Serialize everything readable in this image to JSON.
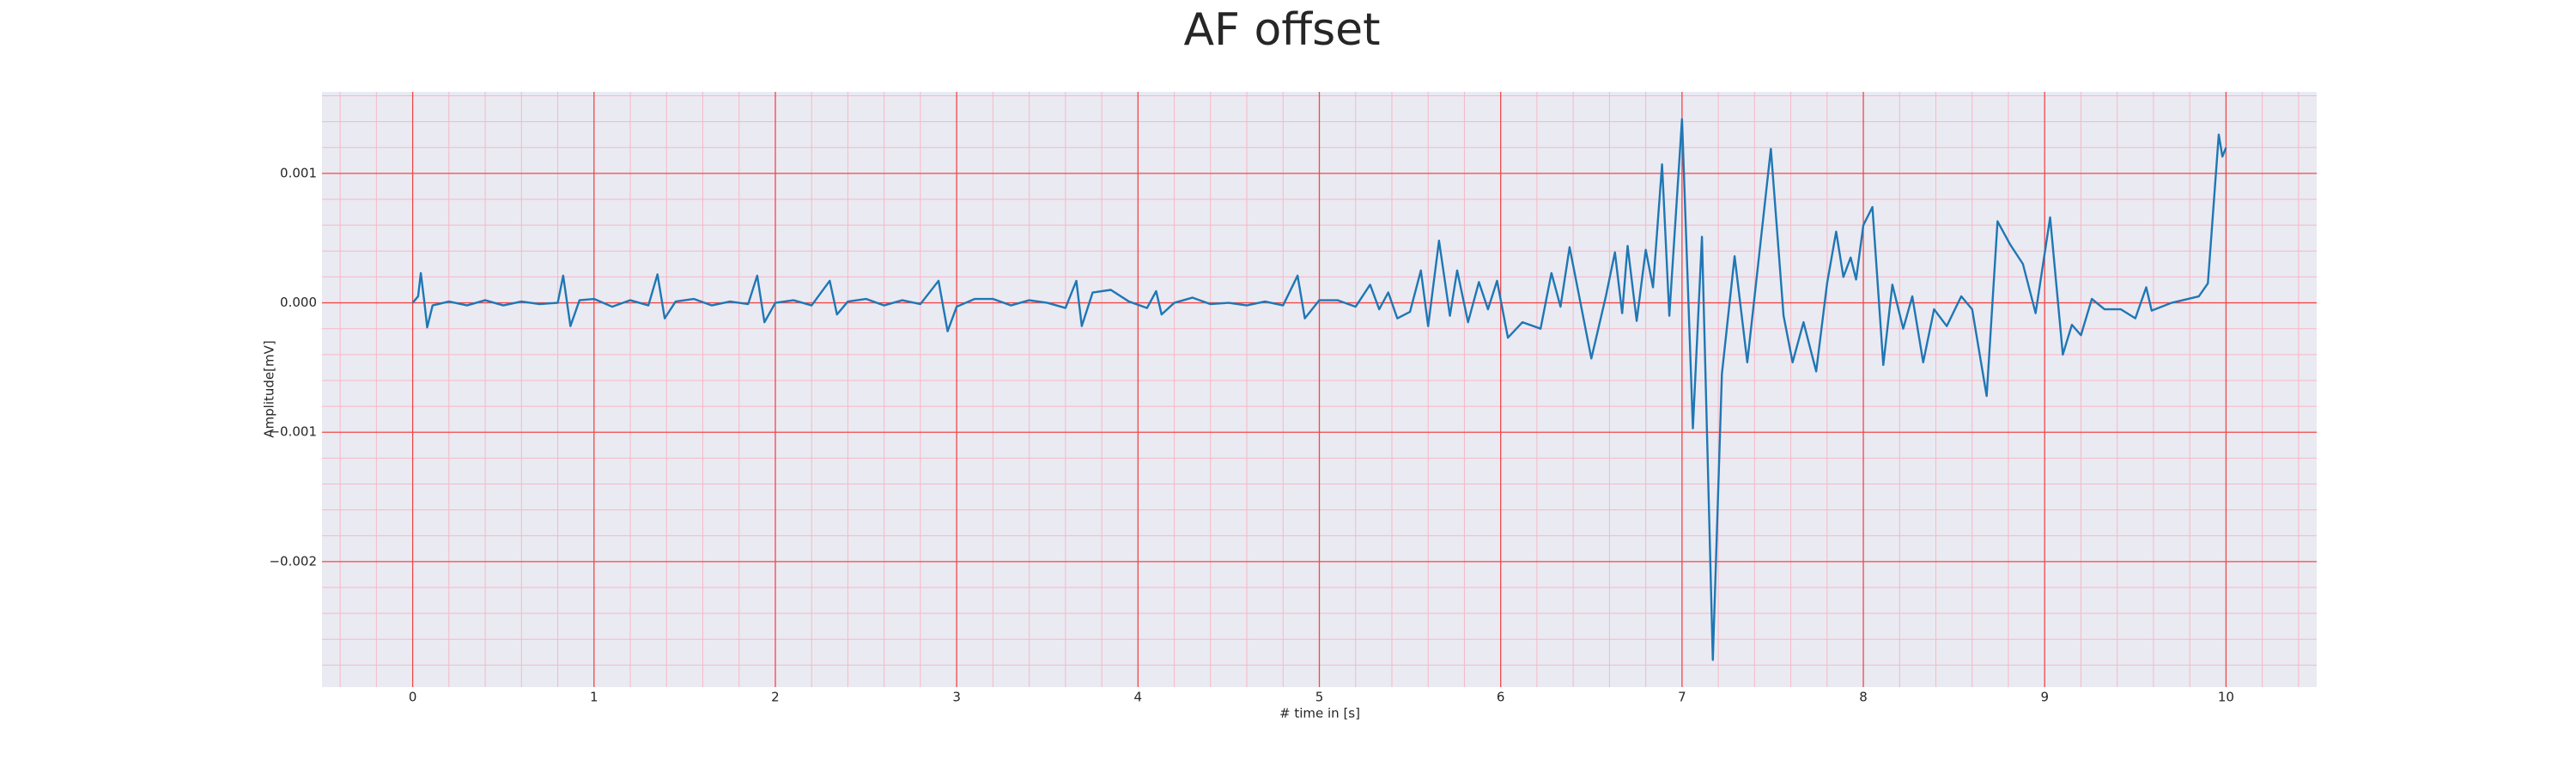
{
  "chart_data": {
    "type": "line",
    "title": "AF offset",
    "xlabel": "# time in [s]",
    "ylabel": "Amplitude[mV]",
    "xlim": [
      -0.5,
      10.5
    ],
    "ylim": [
      -0.00297,
      0.00163
    ],
    "xticks": [
      0,
      1,
      2,
      3,
      4,
      5,
      6,
      7,
      8,
      9,
      10
    ],
    "yticks": [
      {
        "value": -0.002,
        "label": "−0.002"
      },
      {
        "value": -0.001,
        "label": "−0.001"
      },
      {
        "value": 0,
        "label": "0.000"
      },
      {
        "value": 0.001,
        "label": "0.001"
      }
    ],
    "xminorticks": [
      -0.4,
      -0.2,
      0.2,
      0.4,
      0.6,
      0.8,
      1.2,
      1.4,
      1.6,
      1.8,
      2.2,
      2.4,
      2.6,
      2.8,
      3.2,
      3.4,
      3.6,
      3.8,
      4.2,
      4.4,
      4.6,
      4.8,
      5.2,
      5.4,
      5.6,
      5.8,
      6.2,
      6.4,
      6.6,
      6.8,
      7.2,
      7.4,
      7.6,
      7.8,
      8.2,
      8.4,
      8.6,
      8.8,
      9.2,
      9.4,
      9.6,
      9.8,
      10.2,
      10.4
    ],
    "yminorticks": [
      -0.0028,
      -0.0026,
      -0.0024,
      -0.0022,
      -0.0018,
      -0.0016,
      -0.0014,
      -0.0012,
      -0.0008,
      -0.0006,
      -0.0004,
      -0.0002,
      0.0002,
      0.0004,
      0.0006,
      0.0008,
      0.0012,
      0.0014,
      0.0016
    ],
    "grid": true,
    "grid_color": "#f04848",
    "minor_grid_color": "#f6b8c4",
    "background": "#eaeaf2",
    "series": [
      {
        "name": "AF offset",
        "color": "#1f77b4",
        "x": [
          0,
          0.03,
          0.045,
          0.065,
          0.08,
          0.11,
          0.2,
          0.3,
          0.4,
          0.5,
          0.6,
          0.7,
          0.8,
          0.83,
          0.87,
          0.92,
          1.0,
          1.1,
          1.2,
          1.3,
          1.35,
          1.39,
          1.45,
          1.55,
          1.65,
          1.75,
          1.85,
          1.9,
          1.94,
          2.0,
          2.1,
          2.2,
          2.3,
          2.34,
          2.4,
          2.5,
          2.6,
          2.7,
          2.8,
          2.9,
          2.95,
          3.0,
          3.1,
          3.2,
          3.3,
          3.4,
          3.5,
          3.6,
          3.66,
          3.69,
          3.75,
          3.85,
          3.95,
          4.05,
          4.1,
          4.13,
          4.2,
          4.3,
          4.4,
          4.5,
          4.6,
          4.7,
          4.8,
          4.88,
          4.92,
          5.0,
          5.1,
          5.2,
          5.28,
          5.33,
          5.38,
          5.43,
          5.5,
          5.56,
          5.6,
          5.66,
          5.72,
          5.76,
          5.82,
          5.88,
          5.93,
          5.98,
          6.04,
          6.12,
          6.22,
          6.28,
          6.33,
          6.38,
          6.5,
          6.58,
          6.63,
          6.67,
          6.7,
          6.75,
          6.8,
          6.84,
          6.89,
          6.93,
          7.0,
          7.06,
          7.11,
          7.17,
          7.22,
          7.29,
          7.36,
          7.42,
          7.49,
          7.56,
          7.61,
          7.67,
          7.74,
          7.8,
          7.85,
          7.89,
          7.93,
          7.96,
          8.0,
          8.05,
          8.11,
          8.16,
          8.22,
          8.27,
          8.33,
          8.39,
          8.46,
          8.54,
          8.6,
          8.68,
          8.74,
          8.81,
          8.88,
          8.95,
          9.03,
          9.1,
          9.15,
          9.2,
          9.26,
          9.33,
          9.42,
          9.5,
          9.56,
          9.59,
          9.7,
          9.85,
          9.9,
          9.96,
          9.98,
          10.0
        ],
        "values": [
          0,
          5e-05,
          0.00023,
          0,
          -0.00019,
          -2e-05,
          1e-05,
          -2e-05,
          2e-05,
          -2e-05,
          1e-05,
          -1e-05,
          0,
          0.00021,
          -0.00018,
          2e-05,
          3e-05,
          -3e-05,
          2e-05,
          -2e-05,
          0.00022,
          -0.00012,
          1e-05,
          3e-05,
          -2e-05,
          1e-05,
          -1e-05,
          0.00021,
          -0.00015,
          0,
          2e-05,
          -2e-05,
          0.00017,
          -9e-05,
          1e-05,
          3e-05,
          -2e-05,
          2e-05,
          -1e-05,
          0.00017,
          -0.00022,
          -3e-05,
          3e-05,
          3e-05,
          -2e-05,
          2e-05,
          0,
          -4e-05,
          0.00017,
          -0.00018,
          8e-05,
          0.0001,
          1e-05,
          -4e-05,
          9e-05,
          -9e-05,
          0,
          4e-05,
          -1e-05,
          0,
          -2e-05,
          1e-05,
          -2e-05,
          0.00021,
          -0.00012,
          2e-05,
          2e-05,
          -3e-05,
          0.00014,
          -5e-05,
          8e-05,
          -0.00012,
          -7e-05,
          0.00025,
          -0.00018,
          0.00048,
          -0.0001,
          0.00025,
          -0.00015,
          0.00016,
          -5e-05,
          0.00017,
          -0.00027,
          -0.00015,
          -0.0002,
          0.00023,
          -3e-05,
          0.00043,
          -0.00043,
          5e-05,
          0.00039,
          -8e-05,
          0.00044,
          -0.00014,
          0.00041,
          0.00012,
          0.00107,
          -0.0001,
          0.00142,
          -0.00097,
          0.00051,
          -0.00276,
          -0.00055,
          0.00036,
          -0.00046,
          0.0003,
          0.00119,
          -0.0001,
          -0.00046,
          -0.00015,
          -0.00053,
          0.00015,
          0.00055,
          0.0002,
          0.00035,
          0.00018,
          0.0006,
          0.00074,
          -0.00048,
          0.00014,
          -0.0002,
          5e-05,
          -0.00046,
          -5e-05,
          -0.00018,
          5e-05,
          -5e-05,
          -0.00072,
          0.00063,
          0.00045,
          0.0003,
          -8e-05,
          0.00066,
          -0.0004,
          -0.00017,
          -0.00025,
          3e-05,
          -5e-05,
          -5e-05,
          -0.00012,
          0.00012,
          -6e-05,
          0,
          5e-05,
          0.00015,
          0.0013,
          0.00113,
          0.0012
        ]
      }
    ]
  }
}
